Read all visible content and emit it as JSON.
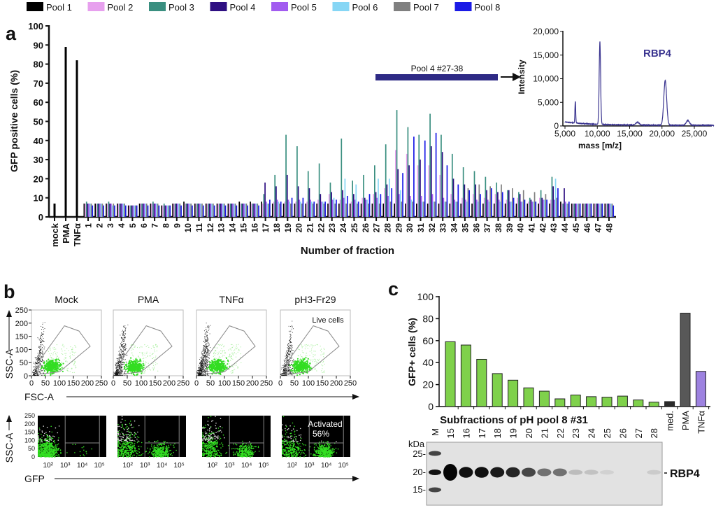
{
  "panel_labels": {
    "a": "a",
    "b": "b",
    "c": "c"
  },
  "legend": [
    {
      "name": "Pool 1",
      "color": "#000000"
    },
    {
      "name": "Pool 2",
      "color": "#e7a0ee"
    },
    {
      "name": "Pool 3",
      "color": "#3a8f80"
    },
    {
      "name": "Pool 4",
      "color": "#2e0f82"
    },
    {
      "name": "Pool 5",
      "color": "#a25cf0"
    },
    {
      "name": "Pool 6",
      "color": "#86d6f5"
    },
    {
      "name": "Pool 7",
      "color": "#808080"
    },
    {
      "name": "Pool 8",
      "color": "#1a1ae6"
    }
  ],
  "chart_data": [
    {
      "id": "a",
      "type": "bar",
      "ylabel": "GFP positive cells (%)",
      "xlabel": "Number of fraction",
      "ylim": [
        0,
        100
      ],
      "yticks": [
        "0",
        "10",
        "20",
        "30",
        "40",
        "50",
        "60",
        "70",
        "80",
        "90",
        "100"
      ],
      "controls": {
        "categories": [
          "mock",
          "PMA",
          "TNFα"
        ],
        "values": [
          7,
          89,
          82
        ]
      },
      "categories": [
        "1",
        "2",
        "3",
        "4",
        "5",
        "6",
        "7",
        "8",
        "9",
        "10",
        "11",
        "12",
        "13",
        "14",
        "15",
        "16",
        "17",
        "18",
        "19",
        "20",
        "21",
        "22",
        "23",
        "24",
        "25",
        "26",
        "27",
        "28",
        "29",
        "30",
        "31",
        "32",
        "33",
        "34",
        "35",
        "36",
        "37",
        "38",
        "39",
        "40",
        "41",
        "42",
        "43",
        "44",
        "45",
        "46",
        "47",
        "48"
      ],
      "series": [
        {
          "name": "Pool 1",
          "values": [
            7,
            7,
            7,
            7,
            6,
            7,
            7,
            6,
            7,
            8,
            7,
            7,
            7,
            7,
            8,
            8,
            8,
            7,
            7,
            7,
            7,
            7,
            7,
            7,
            7,
            7,
            7,
            7,
            7,
            7,
            7,
            7,
            7,
            7,
            7,
            7,
            7,
            7,
            7,
            7,
            7,
            7,
            7,
            8,
            7,
            7,
            7,
            7
          ]
        },
        {
          "name": "Pool 2",
          "values": [
            7,
            7,
            7,
            7,
            6,
            7,
            7,
            6,
            7,
            7,
            7,
            7,
            7,
            7,
            7,
            7,
            7,
            8,
            8,
            8,
            8,
            9,
            12,
            9,
            8,
            10,
            12,
            15,
            35,
            33,
            27,
            27,
            22,
            12,
            10,
            12,
            10,
            12,
            9,
            10,
            8,
            10,
            9,
            7,
            7,
            7,
            7,
            7
          ]
        },
        {
          "name": "Pool 3",
          "values": [
            8,
            7,
            8,
            7,
            6,
            7,
            8,
            7,
            7,
            7,
            7,
            7,
            7,
            7,
            7,
            7,
            12,
            22,
            43,
            37,
            24,
            28,
            18,
            41,
            19,
            22,
            27,
            38,
            56,
            47,
            43,
            54,
            43,
            33,
            26,
            24,
            21,
            18,
            14,
            13,
            10,
            14,
            21,
            7,
            7,
            7,
            7,
            7
          ]
        },
        {
          "name": "Pool 4",
          "values": [
            7,
            7,
            7,
            7,
            6,
            7,
            7,
            6,
            7,
            7,
            7,
            7,
            7,
            7,
            7,
            7,
            18,
            16,
            22,
            16,
            15,
            12,
            13,
            14,
            12,
            10,
            13,
            17,
            25,
            27,
            30,
            37,
            34,
            20,
            17,
            17,
            14,
            13,
            14,
            12,
            9,
            10,
            16,
            15,
            7,
            7,
            7,
            7
          ]
        },
        {
          "name": "Pool 5",
          "values": [
            7,
            7,
            7,
            7,
            6,
            7,
            7,
            6,
            7,
            7,
            7,
            7,
            7,
            7,
            7,
            7,
            8,
            9,
            9,
            9,
            9,
            8,
            9,
            10,
            9,
            9,
            10,
            11,
            12,
            11,
            11,
            12,
            10,
            9,
            9,
            9,
            9,
            9,
            8,
            8,
            8,
            9,
            9,
            8,
            7,
            7,
            7,
            7
          ]
        },
        {
          "name": "Pool 6",
          "values": [
            7,
            7,
            6,
            7,
            6,
            7,
            7,
            6,
            7,
            7,
            7,
            7,
            7,
            7,
            7,
            7,
            7,
            8,
            8,
            8,
            8,
            8,
            10,
            20,
            17,
            9,
            20,
            20,
            14,
            9,
            8,
            8,
            8,
            8,
            8,
            8,
            8,
            8,
            8,
            8,
            8,
            9,
            20,
            7,
            7,
            7,
            7,
            7
          ]
        },
        {
          "name": "Pool 7",
          "values": [
            7,
            7,
            7,
            7,
            6,
            7,
            7,
            6,
            7,
            7,
            7,
            7,
            7,
            7,
            7,
            7,
            7,
            7,
            7,
            7,
            7,
            7,
            7,
            7,
            7,
            7,
            7,
            8,
            8,
            8,
            8,
            8,
            8,
            8,
            15,
            17,
            16,
            17,
            15,
            14,
            13,
            12,
            10,
            7,
            7,
            7,
            7,
            7
          ]
        },
        {
          "name": "Pool 8",
          "values": [
            6,
            6,
            6,
            6,
            6,
            6,
            6,
            6,
            6,
            6,
            6,
            6,
            6,
            6,
            6,
            6,
            9,
            8,
            10,
            10,
            8,
            8,
            9,
            11,
            8,
            12,
            12,
            15,
            23,
            42,
            40,
            44,
            27,
            17,
            14,
            12,
            15,
            13,
            10,
            9,
            8,
            9,
            15,
            8,
            7,
            7,
            7,
            6
          ]
        }
      ],
      "annotation": {
        "label": "Pool 4 #27-38",
        "color": "#2e2a85"
      }
    },
    {
      "id": "a-inset",
      "type": "line",
      "title": "RBP4",
      "xlabel": "mass [m/z]",
      "ylabel": "Intensity",
      "xticks": [
        "5,000",
        "10,000",
        "15,000",
        "20,000",
        "25,000"
      ],
      "yticks": [
        "0",
        "5,000",
        "10,000",
        "15,000",
        "20,000"
      ],
      "xlim": [
        5000,
        28000
      ],
      "ylim": [
        0,
        20000
      ],
      "peaks": [
        {
          "mass": 6600,
          "intensity": 4600
        },
        {
          "mass": 10400,
          "intensity": 17500
        },
        {
          "mass": 16200,
          "intensity": 600
        },
        {
          "mass": 20500,
          "intensity": 9500
        },
        {
          "mass": 24000,
          "intensity": 1000
        }
      ],
      "color": "#3b3590"
    },
    {
      "id": "b",
      "type": "scatter",
      "panels": [
        "Mock",
        "PMA",
        "TNFα",
        "pH3-Fr29"
      ],
      "top_row": {
        "xlabel": "FSC-A",
        "ylabel": "SSC-A",
        "ticks": [
          "0",
          "50",
          "100",
          "150",
          "200",
          "250"
        ],
        "gate_label": "Live cells"
      },
      "bottom_row": {
        "xlabel": "GFP",
        "ylabel": "SSC-A",
        "yticks": [
          "0",
          "50",
          "100",
          "150",
          "200",
          "250"
        ],
        "xticks": [
          "10²",
          "10³",
          "10⁴",
          "10⁵"
        ],
        "gate_label": "Activated",
        "gate_value": "56%"
      },
      "activated_fraction": [
        0.03,
        0.45,
        0.4,
        0.56
      ]
    },
    {
      "id": "c",
      "type": "bar",
      "ylabel": "GFP+ cells (%)",
      "xlabel": "Subfractions of pH pool 8 #31",
      "ylim": [
        0,
        100
      ],
      "yticks": [
        "0",
        "20",
        "40",
        "60",
        "80",
        "100"
      ],
      "categories": [
        "15",
        "16",
        "17",
        "18",
        "19",
        "20",
        "21",
        "22",
        "23",
        "24",
        "25",
        "26",
        "27",
        "28",
        "med.",
        "PMA",
        "TNFα"
      ],
      "values": [
        59,
        56,
        43,
        30,
        24,
        17,
        14,
        7,
        10.5,
        9,
        8.5,
        9.5,
        6,
        4,
        4.5,
        85,
        32
      ],
      "colors": {
        "fraction": "#7fd14b",
        "med.": "#2b2b2b",
        "PMA": "#585858",
        "TNFα": "#9d82e0"
      }
    }
  ],
  "gel": {
    "lanes": [
      "M",
      "15",
      "16",
      "17",
      "18",
      "19",
      "20",
      "21",
      "22",
      "23",
      "24",
      "25",
      "26",
      "27",
      "28"
    ],
    "unit": "kDa",
    "markers": [
      "25-",
      "20-",
      "15-"
    ],
    "band_label": "RBP4",
    "band_intensity": [
      1,
      0.95,
      0.95,
      0.9,
      0.85,
      0.7,
      0.5,
      0.5,
      0.15,
      0.12,
      0.05,
      0,
      0,
      0.08
    ]
  }
}
